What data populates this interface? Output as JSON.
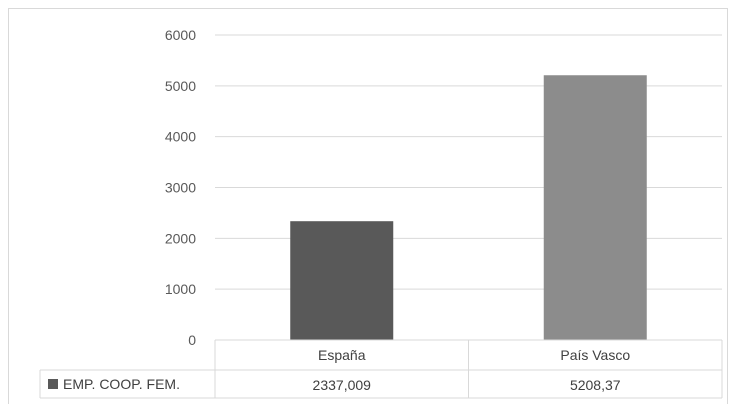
{
  "chart_data": {
    "type": "bar",
    "categories": [
      "España",
      "País Vasco"
    ],
    "series": [
      {
        "name": "EMP. COOP. FEM.",
        "values": [
          2337.009,
          5208.37
        ],
        "value_labels": [
          "2337,009",
          "5208,37"
        ],
        "colors": [
          "#595959",
          "#8c8c8c"
        ]
      }
    ],
    "y_ticks": [
      "0",
      "1000",
      "2000",
      "3000",
      "4000",
      "5000",
      "6000"
    ],
    "ylim": [
      0,
      6000
    ],
    "grid": true,
    "legend": "data-table-below"
  }
}
